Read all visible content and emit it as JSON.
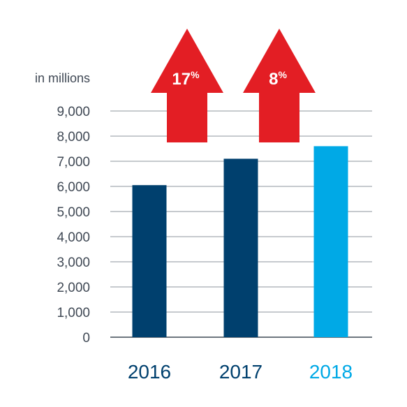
{
  "chart_data": {
    "type": "bar",
    "unit_label": "in millions",
    "categories": [
      "2016",
      "2017",
      "2018"
    ],
    "values": [
      6050,
      7100,
      7600
    ],
    "ylim": [
      0,
      9000
    ],
    "yticks": [
      "0",
      "1,000",
      "2,000",
      "3,000",
      "4,000",
      "5,000",
      "6,000",
      "7,000",
      "8,000",
      "9,000"
    ],
    "grid": true,
    "bar_colors": [
      "#00406e",
      "#00406e",
      "#00a9e6"
    ],
    "label_colors": [
      "#00406e",
      "#00406e",
      "#00a9e6"
    ],
    "growth_annotations": [
      {
        "from": "2016",
        "to": "2017",
        "value": "17",
        "suffix": "%"
      },
      {
        "from": "2017",
        "to": "2018",
        "value": "8",
        "suffix": "%"
      }
    ],
    "arrow_color": "#e31e24"
  }
}
